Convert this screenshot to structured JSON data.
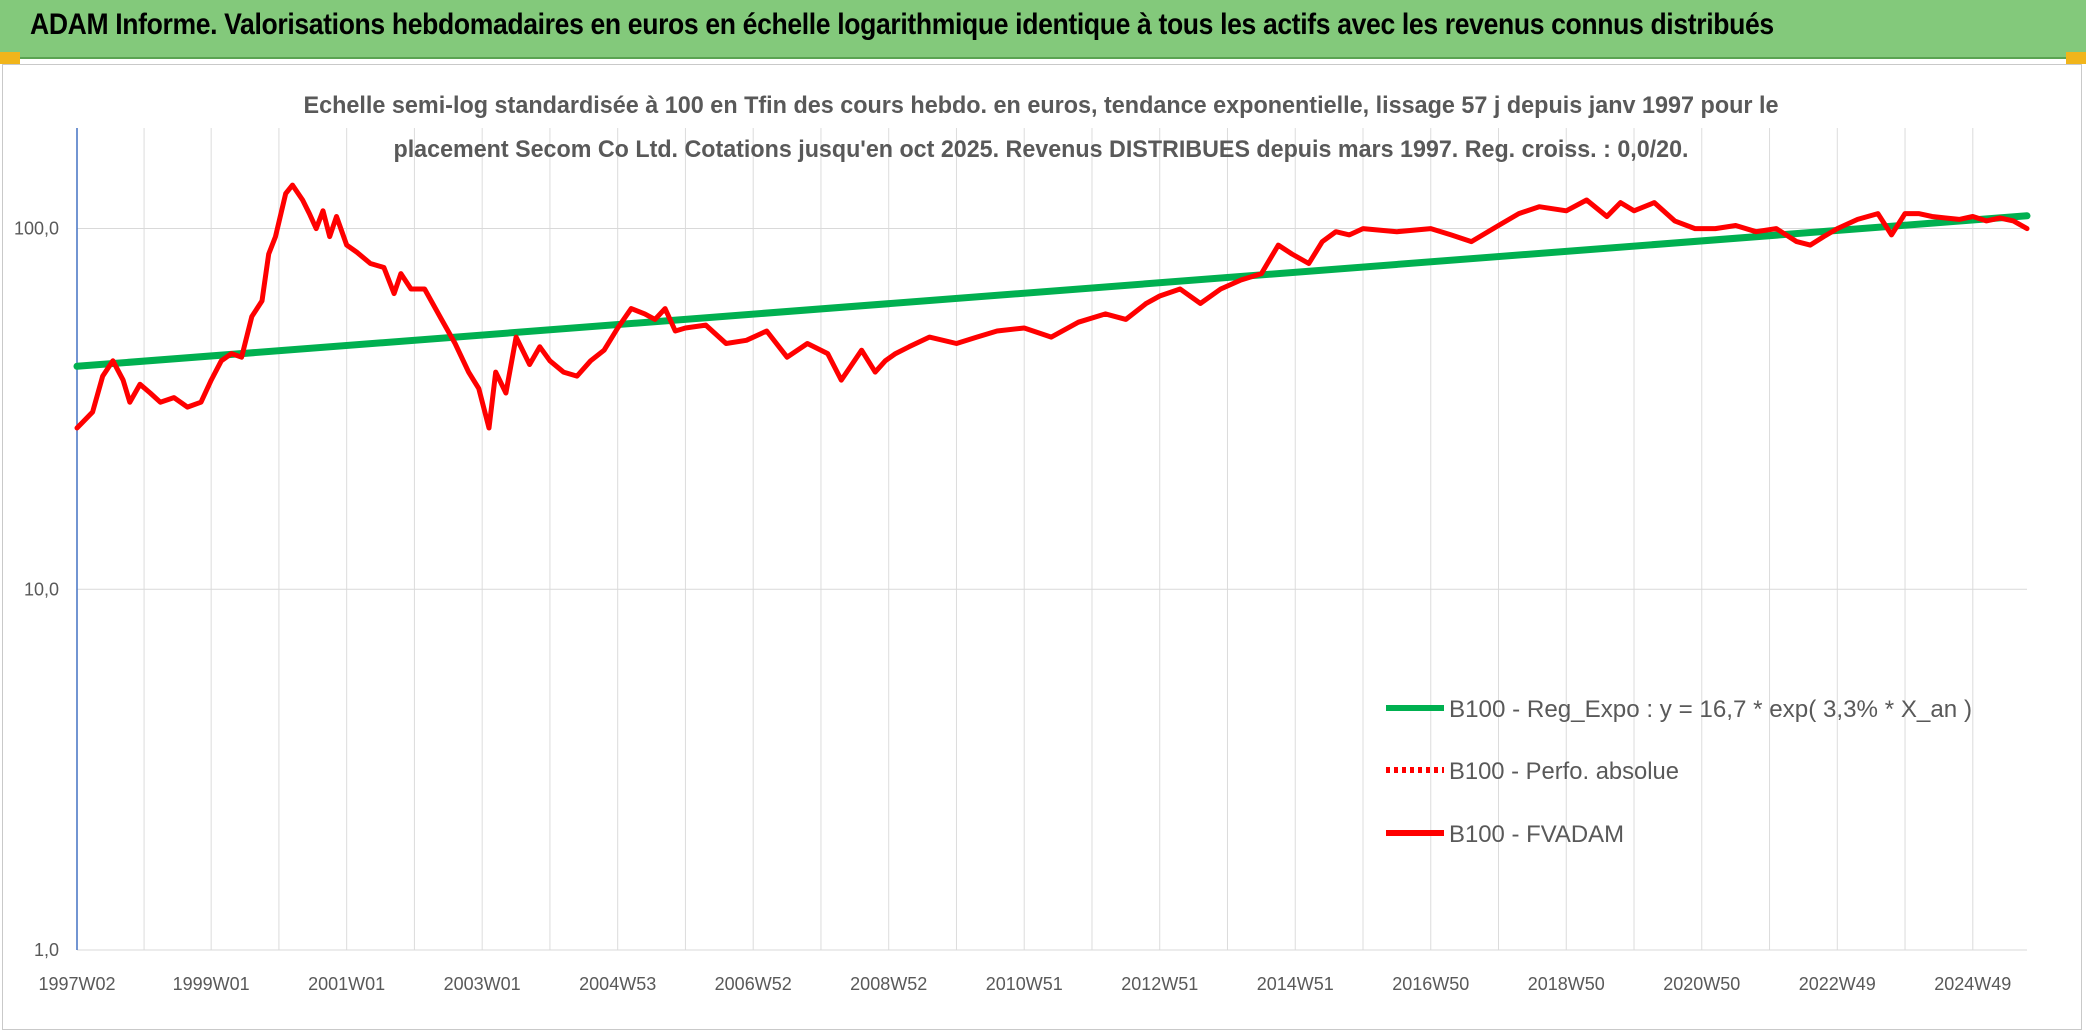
{
  "banner": {
    "title": "ADAM Informe. Valorisations hebdomadaires en euros en échelle logarithmique identique à tous les actifs avec les revenus connus distribués",
    "background": "#83c97b"
  },
  "chart_data": {
    "type": "line",
    "title_lines": [
      "Echelle semi-log standardisée à 100 en Tfin des cours hebdo. en euros, tendance exponentielle, lissage 57 j depuis janv 1997 pour le",
      "placement Secom Co Ltd. Cotations jusqu'en oct 2025. Revenus DISTRIBUES depuis mars 1997. Reg. croiss. : 0,0/20."
    ],
    "y_scale": "log",
    "ylim": [
      1,
      190
    ],
    "y_ticks": [
      {
        "value": 1,
        "label": "1,0"
      },
      {
        "value": 10,
        "label": "10,0"
      },
      {
        "value": 100,
        "label": "100,0"
      }
    ],
    "xlim": [
      1997.02,
      2025.8
    ],
    "x_ticks": [
      {
        "value": 1997.02,
        "label": "1997W02"
      },
      {
        "value": 1999.0,
        "label": "1999W01"
      },
      {
        "value": 2001.0,
        "label": "2001W01"
      },
      {
        "value": 2003.0,
        "label": "2003W01"
      },
      {
        "value": 2005.0,
        "label": "2004W53"
      },
      {
        "value": 2007.0,
        "label": "2006W52"
      },
      {
        "value": 2009.0,
        "label": "2008W52"
      },
      {
        "value": 2011.0,
        "label": "2010W51"
      },
      {
        "value": 2013.0,
        "label": "2012W51"
      },
      {
        "value": 2015.0,
        "label": "2014W51"
      },
      {
        "value": 2017.0,
        "label": "2016W50"
      },
      {
        "value": 2019.0,
        "label": "2018W50"
      },
      {
        "value": 2021.0,
        "label": "2020W50"
      },
      {
        "value": 2023.0,
        "label": "2022W49"
      },
      {
        "value": 2025.0,
        "label": "2024W49"
      }
    ],
    "grid": true,
    "legend_position": "right-center",
    "series": [
      {
        "name": "B100 - Reg_Expo : y = 16,7 * exp( 3,3% *  X_an )",
        "color": "#00b050",
        "style": "solid",
        "x": [
          1997.02,
          2025.8
        ],
        "values": [
          41.5,
          108.5
        ]
      },
      {
        "name": "B100 - Perfo. absolue",
        "color": "#ff0000",
        "style": "dotted",
        "x": [],
        "values": []
      },
      {
        "name": "B100 - FVADAM",
        "color": "#ff0000",
        "style": "solid",
        "x": [
          1997.02,
          1997.1,
          1997.25,
          1997.4,
          1997.55,
          1997.7,
          1997.8,
          1997.95,
          1998.1,
          1998.25,
          1998.45,
          1998.65,
          1998.85,
          1999.0,
          1999.15,
          1999.3,
          1999.45,
          1999.6,
          1999.75,
          1999.85,
          1999.95,
          2000.1,
          2000.2,
          2000.35,
          2000.45,
          2000.55,
          2000.65,
          2000.75,
          2000.85,
          2001.0,
          2001.15,
          2001.35,
          2001.55,
          2001.7,
          2001.8,
          2001.95,
          2002.15,
          2002.4,
          2002.6,
          2002.8,
          2002.95,
          2003.1,
          2003.2,
          2003.35,
          2003.5,
          2003.7,
          2003.85,
          2004.0,
          2004.2,
          2004.4,
          2004.6,
          2004.8,
          2005.0,
          2005.2,
          2005.4,
          2005.55,
          2005.7,
          2005.85,
          2006.0,
          2006.3,
          2006.6,
          2006.9,
          2007.2,
          2007.5,
          2007.8,
          2008.1,
          2008.3,
          2008.6,
          2008.8,
          2008.95,
          2009.1,
          2009.3,
          2009.6,
          2010.0,
          2010.3,
          2010.6,
          2011.0,
          2011.4,
          2011.8,
          2012.2,
          2012.5,
          2012.8,
          2013.0,
          2013.3,
          2013.6,
          2013.9,
          2014.2,
          2014.5,
          2014.75,
          2014.95,
          2015.2,
          2015.4,
          2015.6,
          2015.8,
          2016.0,
          2016.5,
          2017.0,
          2017.3,
          2017.6,
          2018.0,
          2018.3,
          2018.6,
          2019.0,
          2019.3,
          2019.6,
          2019.8,
          2020.0,
          2020.3,
          2020.6,
          2020.9,
          2021.2,
          2021.5,
          2021.8,
          2022.1,
          2022.4,
          2022.6,
          2022.8,
          2023.0,
          2023.3,
          2023.6,
          2023.8,
          2024.0,
          2024.2,
          2024.4,
          2024.6,
          2024.8,
          2025.0,
          2025.2,
          2025.4,
          2025.6,
          2025.8
        ],
        "values": [
          28,
          29,
          31,
          39,
          43,
          38,
          33,
          37,
          35,
          33,
          34,
          32,
          33,
          38,
          43,
          45,
          44,
          57,
          63,
          85,
          95,
          125,
          132,
          120,
          110,
          100,
          112,
          95,
          108,
          90,
          86,
          80,
          78,
          66,
          75,
          68,
          68,
          56,
          48,
          40,
          36,
          28,
          40,
          35,
          50,
          42,
          47,
          43,
          40,
          39,
          43,
          46,
          53,
          60,
          58,
          56,
          60,
          52,
          53,
          54,
          48,
          49,
          52,
          44,
          48,
          45,
          38,
          46,
          40,
          43,
          45,
          47,
          50,
          48,
          50,
          52,
          53,
          50,
          55,
          58,
          56,
          62,
          65,
          68,
          62,
          68,
          72,
          75,
          90,
          85,
          80,
          92,
          98,
          96,
          100,
          98,
          100,
          96,
          92,
          102,
          110,
          115,
          112,
          120,
          108,
          118,
          112,
          118,
          105,
          100,
          100,
          102,
          98,
          100,
          92,
          90,
          95,
          100,
          106,
          110,
          96,
          110,
          110,
          108,
          107,
          106,
          108,
          105,
          107,
          105,
          100
        ]
      }
    ]
  }
}
